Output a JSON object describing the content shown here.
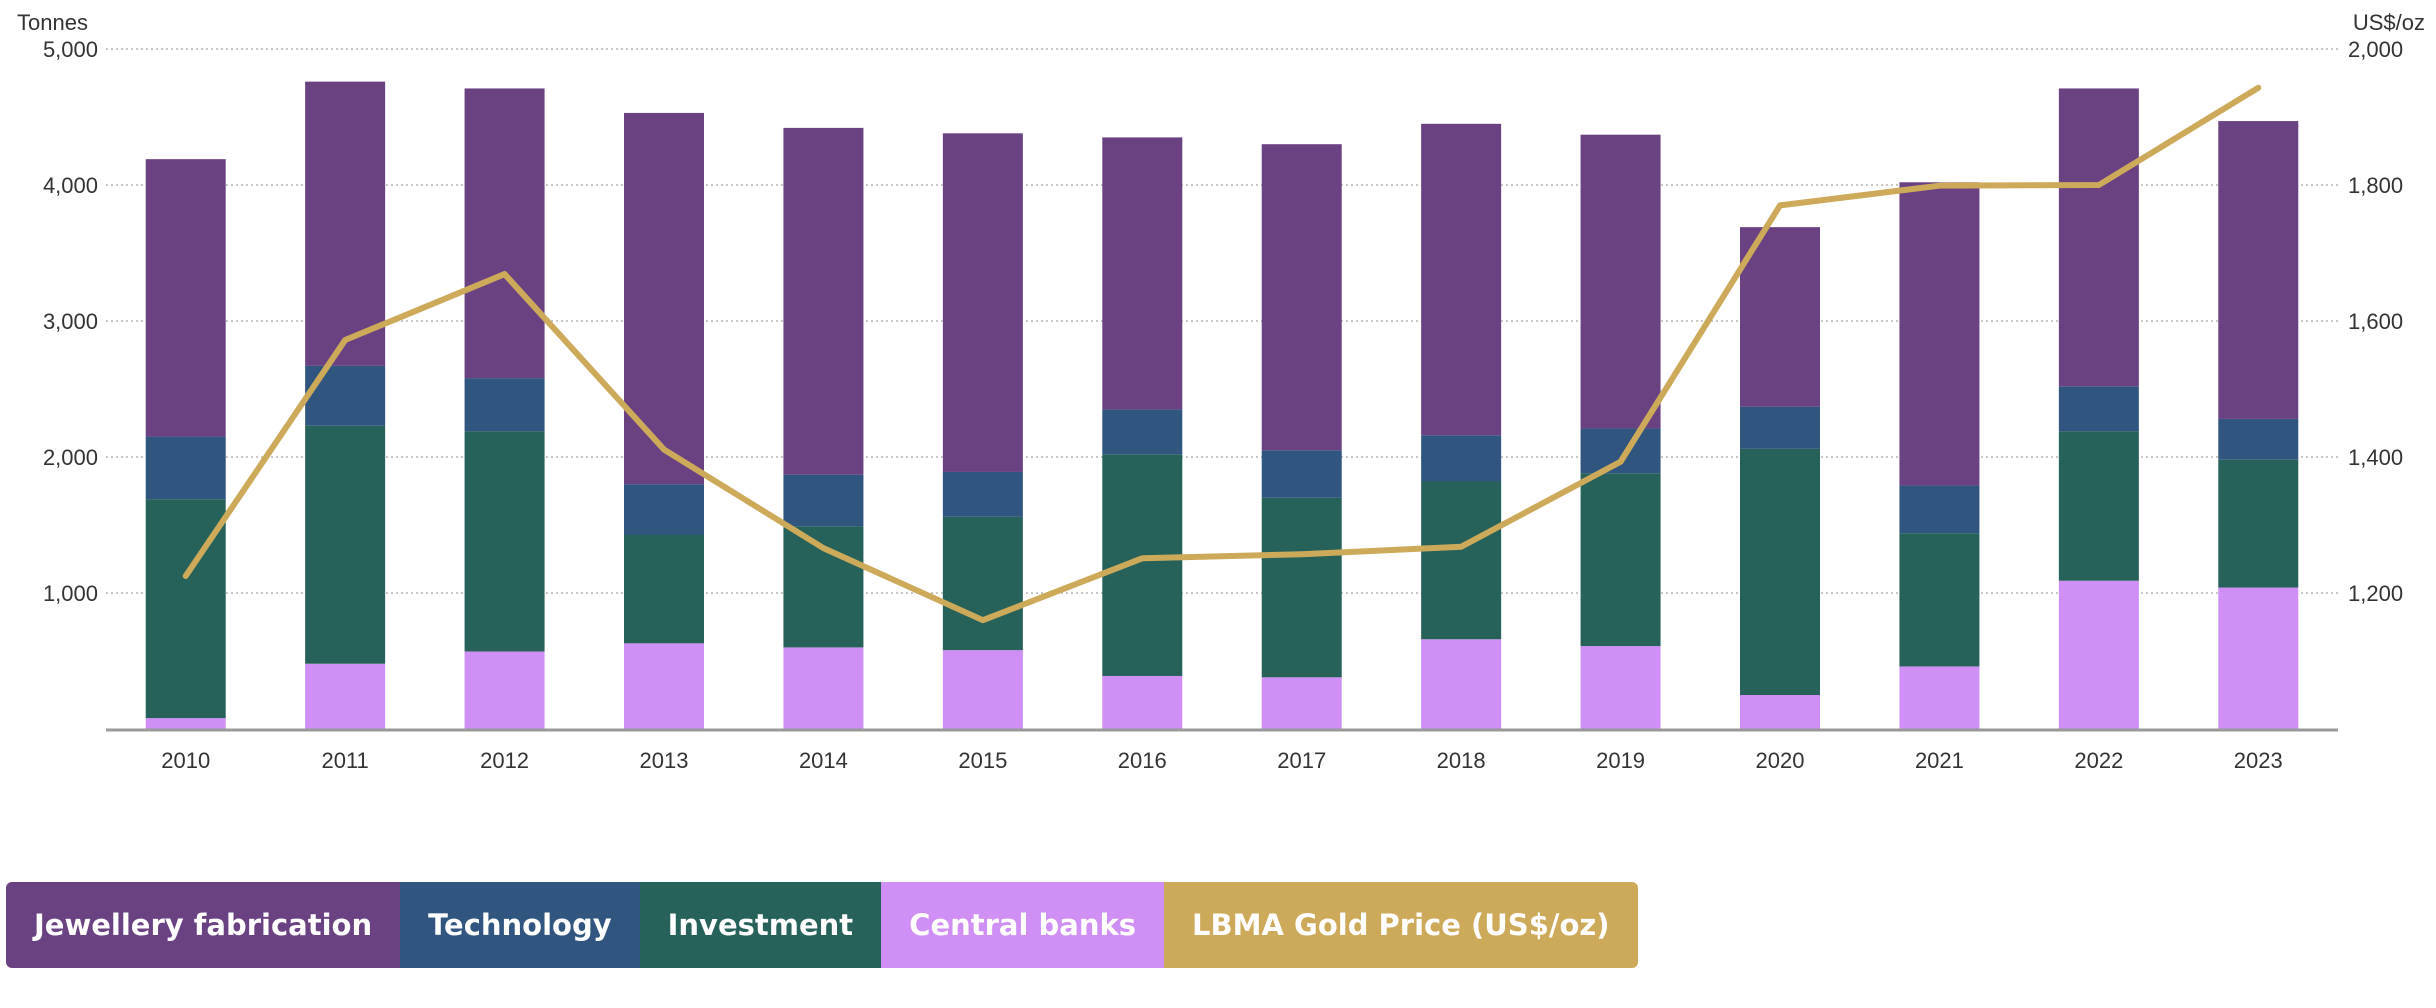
{
  "chart_data": {
    "type": "bar",
    "stacked": true,
    "categories": [
      "2010",
      "2011",
      "2012",
      "2013",
      "2014",
      "2015",
      "2016",
      "2017",
      "2018",
      "2019",
      "2020",
      "2021",
      "2022",
      "2023"
    ],
    "series": [
      {
        "name": "Central banks",
        "color": "#cf8ff5",
        "axis": "left",
        "values": [
          80,
          480,
          570,
          630,
          600,
          580,
          390,
          380,
          660,
          610,
          250,
          460,
          1090,
          1040
        ]
      },
      {
        "name": "Investment",
        "color": "#27625a",
        "axis": "left",
        "values": [
          1610,
          1750,
          1620,
          800,
          890,
          980,
          1630,
          1320,
          1160,
          1270,
          1810,
          980,
          1100,
          940
        ]
      },
      {
        "name": "Technology",
        "color": "#30557f",
        "axis": "left",
        "values": [
          460,
          440,
          390,
          370,
          380,
          330,
          330,
          350,
          340,
          330,
          310,
          350,
          330,
          300
        ]
      },
      {
        "name": "Jewellery fabrication",
        "color": "#6a4282",
        "axis": "left",
        "values": [
          2040,
          2090,
          2130,
          2730,
          2550,
          2490,
          2000,
          2250,
          2290,
          2160,
          1320,
          2230,
          2190,
          2190
        ]
      },
      {
        "name": "LBMA Gold Price (US$/oz)",
        "color": "#cdaa59",
        "axis": "right",
        "type": "line",
        "values": [
          1225,
          1572,
          1669,
          1411,
          1266,
          1160,
          1251,
          1257,
          1268,
          1393,
          1770,
          1799,
          1800,
          1943
        ]
      }
    ],
    "ylabel_left": "Tonnes",
    "ylabel_right": "US$/oz",
    "ylim_left": [
      0,
      5000
    ],
    "ylim_right": [
      1000,
      2000
    ],
    "yticks_left": [
      "1,000",
      "2,000",
      "3,000",
      "4,000",
      "5,000"
    ],
    "yticks_right": [
      "1,200",
      "1,400",
      "1,600",
      "1,800",
      "2,000"
    ],
    "grid": true,
    "legend_position": "bottom-left"
  },
  "legend": [
    {
      "label": "Jewellery fabrication",
      "color": "#6a4282"
    },
    {
      "label": "Technology",
      "color": "#30557f"
    },
    {
      "label": "Investment",
      "color": "#27625a"
    },
    {
      "label": "Central banks",
      "color": "#cf8ff5"
    },
    {
      "label": "LBMA Gold Price (US$/oz)",
      "color": "#cdaa59"
    }
  ]
}
